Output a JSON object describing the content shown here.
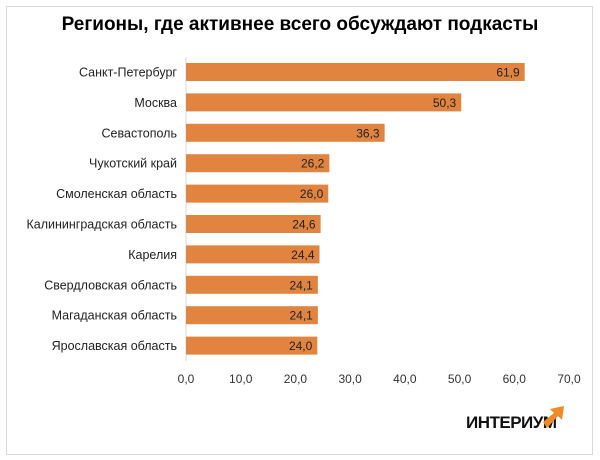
{
  "chart_data": {
    "type": "bar",
    "orientation": "horizontal",
    "title": "Регионы, где активнее всего обсуждают подкасты",
    "categories": [
      "Санкт-Петербург",
      "Москва",
      "Севастополь",
      "Чукотский край",
      "Смоленская область",
      "Калининградская область",
      "Карелия",
      "Свердловская область",
      "Магаданская область",
      "Ярославская область"
    ],
    "values": [
      61.9,
      50.3,
      36.3,
      26.2,
      26.0,
      24.6,
      24.4,
      24.1,
      24.1,
      24.0
    ],
    "value_labels": [
      "61,9",
      "50,3",
      "36,3",
      "26,2",
      "26,0",
      "24,6",
      "24,4",
      "24,1",
      "24,1",
      "24,0"
    ],
    "xlim": [
      0,
      70
    ],
    "x_ticks": [
      0,
      10,
      20,
      30,
      40,
      50,
      60,
      70
    ],
    "x_tick_labels": [
      "0,0",
      "10,0",
      "20,0",
      "30,0",
      "40,0",
      "50,0",
      "60,0",
      "70,0"
    ],
    "grid": false,
    "bar_color": "#E0843F"
  },
  "logo": {
    "text": "ИНТЕРИУМ",
    "accent": "#F08A24"
  }
}
